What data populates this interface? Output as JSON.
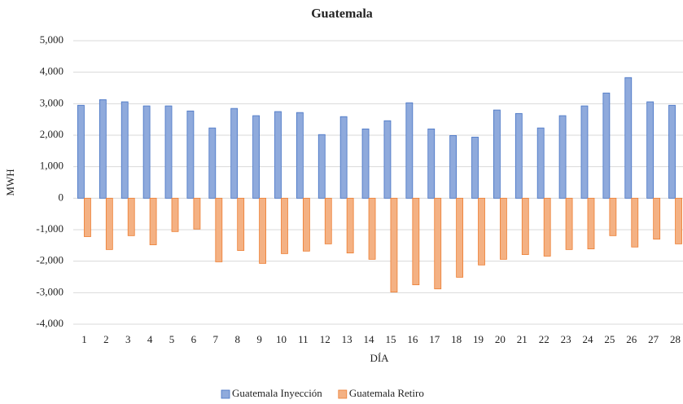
{
  "chart_data": {
    "type": "bar",
    "title": "Guatemala",
    "x_label": "DÍA",
    "y_label": "MWH",
    "categories": [
      "1",
      "2",
      "3",
      "4",
      "5",
      "6",
      "7",
      "8",
      "9",
      "10",
      "11",
      "12",
      "13",
      "14",
      "15",
      "16",
      "17",
      "18",
      "19",
      "20",
      "21",
      "22",
      "23",
      "24",
      "25",
      "26",
      "27",
      "28"
    ],
    "series": [
      {
        "name": "Guatemala Inyección",
        "color": "#8faadc",
        "values": [
          2950,
          3130,
          3060,
          2930,
          2930,
          2770,
          2230,
          2850,
          2620,
          2750,
          2720,
          2020,
          2590,
          2200,
          2460,
          3030,
          2200,
          1990,
          1940,
          2800,
          2690,
          2230,
          2620,
          2930,
          3340,
          3830,
          3060,
          2950
        ]
      },
      {
        "name": "Guatemala Retiro",
        "color": "#f4b183",
        "values": [
          -1220,
          -1630,
          -1190,
          -1480,
          -1060,
          -980,
          -2020,
          -1660,
          -2070,
          -1760,
          -1680,
          -1450,
          -1740,
          -1940,
          -2980,
          -2750,
          -2880,
          -2510,
          -2120,
          -1940,
          -1790,
          -1840,
          -1630,
          -1610,
          -1190,
          -1550,
          -1300,
          -1450
        ]
      }
    ],
    "ylim": [
      -4000,
      5000
    ],
    "yticks": [
      {
        "value": -4000,
        "label": "-4,000"
      },
      {
        "value": -3000,
        "label": "-3,000"
      },
      {
        "value": -2000,
        "label": "-2,000"
      },
      {
        "value": -1000,
        "label": "-1,000"
      },
      0,
      {
        "value": 1000,
        "label": "1,000"
      },
      {
        "value": 2000,
        "label": "2,000"
      },
      {
        "value": 3000,
        "label": "3,000"
      },
      {
        "value": 4000,
        "label": "4,000"
      },
      {
        "value": 5000,
        "label": "5,000"
      }
    ],
    "grid": true,
    "legend": "bottom"
  }
}
